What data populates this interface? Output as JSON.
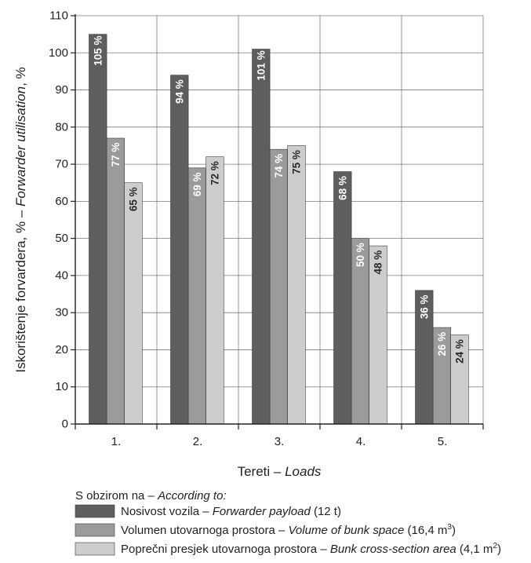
{
  "chart_data": {
    "type": "bar",
    "categories": [
      "1.",
      "2.",
      "3.",
      "4.",
      "5."
    ],
    "series": [
      {
        "values": [
          105,
          94,
          101,
          68,
          36
        ],
        "labels": [
          "105 %",
          "94 %",
          "101 %",
          "68 %",
          "36 %"
        ],
        "color": "#5e5e5e",
        "label_color": "#ffffff"
      },
      {
        "values": [
          77,
          69,
          74,
          50,
          26
        ],
        "labels": [
          "77 %",
          "69 %",
          "74 %",
          "50 %",
          "26 %"
        ],
        "color": "#9b9b9b",
        "label_color": "#ffffff"
      },
      {
        "values": [
          65,
          72,
          75,
          48,
          24
        ],
        "labels": [
          "65 %",
          "72 %",
          "75 %",
          "48 %",
          "24 %"
        ],
        "color": "#cdcdcd",
        "label_color": "#2a2a2a"
      }
    ],
    "ylim": [
      0,
      110
    ],
    "yticks": [
      0,
      10,
      20,
      30,
      40,
      50,
      60,
      70,
      80,
      90,
      100,
      110
    ],
    "grid": true,
    "ylabel": {
      "hr": "Iskorištenje forvardera,  %",
      "sep": "  –  ",
      "en": "Forwarder utilisation",
      "unit": ", %"
    },
    "xlabel": {
      "hr": "Tereti",
      "sep": "  –  ",
      "en": "Loads"
    },
    "legend": {
      "heading_hr": "S obzirom na",
      "heading_sep": "  –  ",
      "heading_en": "According to:",
      "items": [
        {
          "hr": "Nosivost vozila",
          "sep": "  –  ",
          "en": "Forwarder payload",
          "tail": " (12 t)",
          "sup": "",
          "close": ""
        },
        {
          "hr": "Volumen utovarnoga prostora",
          "sep": " – ",
          "en": "Volume of bunk space",
          "tail": " (16,4 m",
          "sup": "3",
          "close": ")"
        },
        {
          "hr": "Poprečni presjek utovarnoga prostora",
          "sep": " – ",
          "en": "Bunk cross-section area",
          "tail": " (4,1 m",
          "sup": "2",
          "close": ")"
        }
      ]
    }
  }
}
